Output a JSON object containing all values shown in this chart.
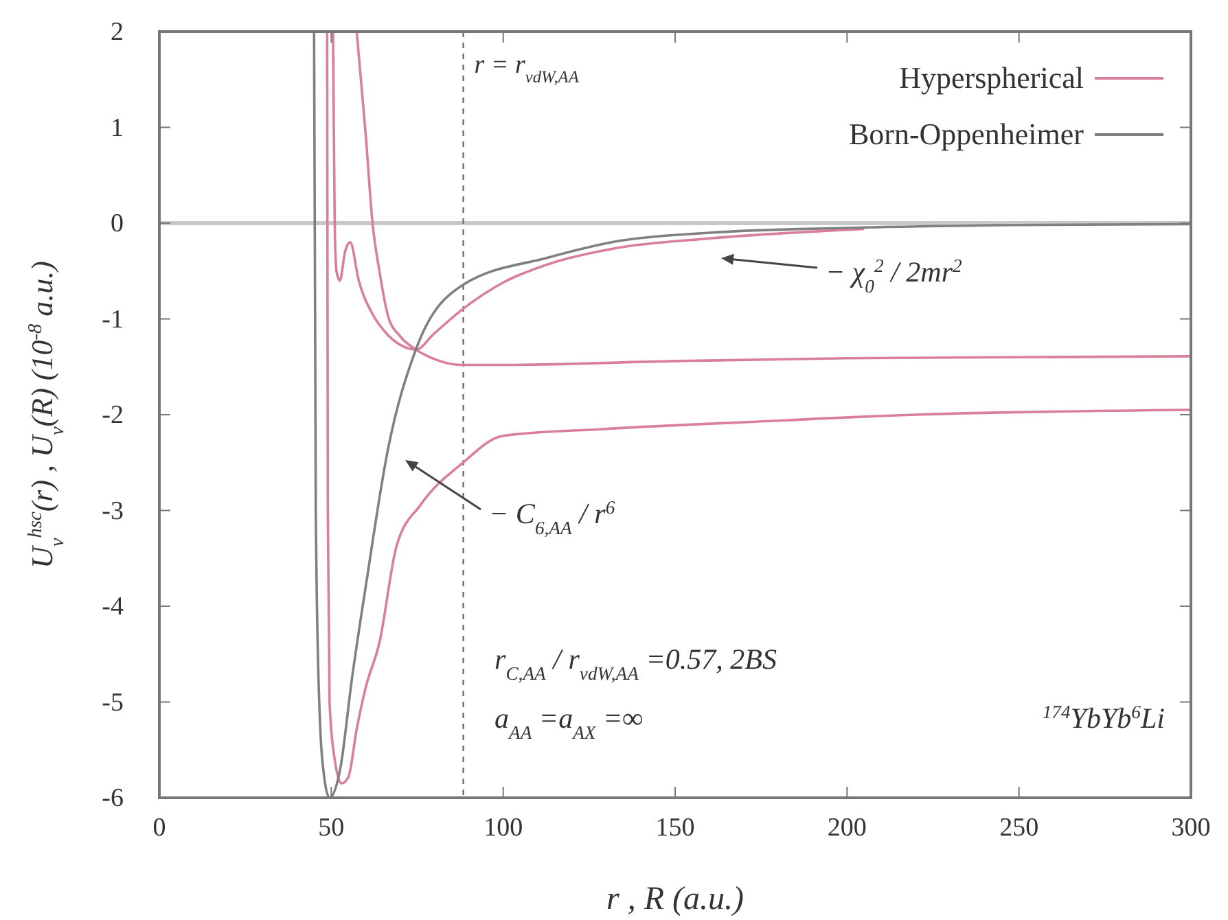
{
  "chart_data": {
    "type": "line",
    "xlabel": "r ,  R  (a.u.)",
    "ylabel": "U$_{ν}$$^{hsc}$(r) , U$_{ν}$(R)  (10$^{-8}$ a.u.)",
    "xlim": [
      0,
      300
    ],
    "ylim": [
      -6,
      2
    ],
    "xticks": [
      0,
      50,
      100,
      150,
      200,
      250,
      300
    ],
    "yticks": [
      -6,
      -5,
      -4,
      -3,
      -2,
      -1,
      0,
      1,
      2
    ],
    "grid": false,
    "legend": "top right",
    "line_style": "solid",
    "marker": "none",
    "series": [
      {
        "name": "Hyperspherical",
        "color": "#d97f98",
        "x": [
          48.8,
          49,
          49.5,
          51,
          53,
          55,
          57.4,
          60,
          64,
          69,
          76,
          88,
          100,
          129,
          169,
          220,
          300
        ],
        "values": [
          2,
          -3,
          -5,
          -5.6,
          -5.85,
          -5.78,
          -5.28,
          -4.85,
          -4.38,
          -3.37,
          -2.94,
          -2.51,
          -2.22,
          -2.15,
          -2.08,
          -2.0,
          -1.95
        ]
      },
      {
        "color": "#d97f98",
        "x": [
          57.4,
          60,
          62,
          64,
          66.6,
          70,
          74.6,
          80,
          88,
          100,
          150,
          200,
          300
        ],
        "values": [
          2,
          0.93,
          0,
          -0.5,
          -0.98,
          -1.18,
          -1.32,
          -1.42,
          -1.48,
          -1.48,
          -1.44,
          -1.41,
          -1.39
        ]
      },
      {
        "color": "#d97f98",
        "x": [
          50.5,
          51,
          51.5,
          52.5,
          54,
          55.5,
          58,
          62,
          66,
          70,
          74.6,
          80,
          88.5,
          100,
          113,
          133,
          160,
          205
        ],
        "values": [
          2,
          0,
          -0.5,
          -0.6,
          -0.3,
          -0.2,
          -0.6,
          -0.95,
          -1.15,
          -1.27,
          -1.32,
          -1.15,
          -0.89,
          -0.62,
          -0.43,
          -0.26,
          -0.16,
          -0.06
        ]
      },
      {
        "name": "Born-Oppenheimer",
        "color": "#808080",
        "x": [
          45,
          45.5,
          46.5,
          48,
          49.5,
          52.6,
          56,
          60,
          66.5,
          74.6,
          88.5,
          113,
          133,
          160,
          200,
          250,
          300
        ],
        "values": [
          2,
          -3,
          -5,
          -5.8,
          -6,
          -5.7,
          -4.76,
          -3.8,
          -2.36,
          -1.32,
          -0.64,
          -0.36,
          -0.19,
          -0.1,
          -0.05,
          -0.02,
          -0.01
        ]
      }
    ],
    "ref_lines": [
      {
        "axis": "y",
        "value": 0,
        "color": "#c8c8c8",
        "line_style": "solid"
      },
      {
        "axis": "x",
        "value": 88.4,
        "color": "#707070",
        "line_style": "dashed",
        "label": "r = r$_{vdW,AA}$"
      }
    ],
    "annotations": [
      "− C$_{6,AA}$ / r$^{6}$",
      "− χ$_{0}$$^{2}$ / 2mr$^{2}$",
      "r$_{C,AA}$ / r$_{vdW,AA}$ =0.57, 2BS",
      "a$_{AA}$ =a$_{AX}$ =∞",
      "$^{174}$YbYb$^{6}$Li"
    ]
  }
}
